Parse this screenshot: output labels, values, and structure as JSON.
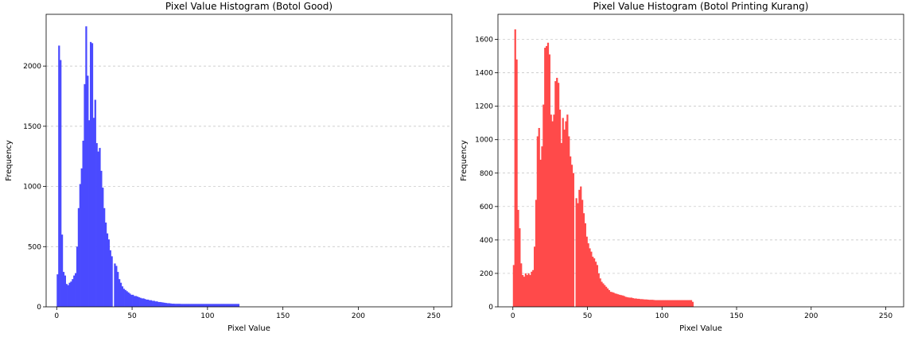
{
  "chart_data": [
    {
      "type": "bar",
      "title": "Pixel Value Histogram (Botol Good)",
      "xlabel": "Pixel Value",
      "ylabel": "Frequency",
      "color": "#4a4aff",
      "grid": "y-dashed",
      "xlim": [
        -7,
        262
      ],
      "ylim": [
        0,
        2430
      ],
      "xticks": [
        0,
        50,
        100,
        150,
        200,
        250
      ],
      "yticks": [
        0,
        500,
        1000,
        1500,
        2000
      ],
      "bin_width": 1,
      "x": [
        0,
        1,
        2,
        3,
        4,
        5,
        6,
        7,
        8,
        9,
        10,
        11,
        12,
        13,
        14,
        15,
        16,
        17,
        18,
        19,
        20,
        21,
        22,
        23,
        24,
        25,
        26,
        27,
        28,
        29,
        30,
        31,
        32,
        33,
        34,
        35,
        36,
        37,
        38,
        39,
        40,
        41,
        42,
        43,
        44,
        45,
        46,
        47,
        48,
        49,
        50,
        51,
        52,
        53,
        54,
        55,
        56,
        57,
        58,
        59,
        60,
        61,
        62,
        63,
        64,
        65,
        66,
        67,
        68,
        69,
        70,
        71,
        72,
        73,
        74,
        75,
        76,
        77,
        78,
        79,
        80,
        81,
        82,
        83,
        84,
        85,
        86,
        87,
        88,
        89,
        90,
        91,
        92,
        93,
        94,
        95,
        96,
        97,
        98,
        99,
        100,
        101,
        102,
        103,
        104,
        105,
        106,
        107,
        108,
        109,
        110,
        111,
        112,
        113,
        114,
        115,
        116,
        117,
        118,
        119,
        120
      ],
      "values": [
        270,
        2170,
        2050,
        600,
        290,
        260,
        190,
        180,
        200,
        210,
        230,
        260,
        280,
        500,
        820,
        1020,
        1150,
        1380,
        1850,
        2330,
        1920,
        1550,
        2200,
        2190,
        1570,
        1720,
        1360,
        1290,
        1320,
        1130,
        990,
        820,
        700,
        610,
        560,
        470,
        420,
        0,
        360,
        340,
        290,
        230,
        200,
        170,
        150,
        140,
        130,
        120,
        110,
        100,
        100,
        90,
        90,
        85,
        80,
        75,
        70,
        70,
        65,
        60,
        60,
        55,
        55,
        50,
        50,
        45,
        45,
        40,
        40,
        38,
        36,
        34,
        32,
        30,
        30,
        28,
        26,
        26,
        25,
        25,
        25,
        25,
        24,
        24,
        24,
        24,
        24,
        24,
        24,
        24,
        24,
        24,
        24,
        24,
        24,
        24,
        24,
        24,
        24,
        24,
        24,
        24,
        24,
        24,
        24,
        24,
        24,
        24,
        24,
        24,
        24,
        24,
        24,
        24,
        24,
        24,
        24,
        24,
        24,
        24,
        24
      ]
    },
    {
      "type": "bar",
      "title": "Pixel Value Histogram (Botol Printing Kurang)",
      "xlabel": "Pixel Value",
      "ylabel": "Frequency",
      "color": "#ff4a4a",
      "grid": "y-dashed",
      "xlim": [
        -10,
        262
      ],
      "ylim": [
        0,
        1750
      ],
      "xticks": [
        0,
        50,
        100,
        150,
        200,
        250
      ],
      "yticks": [
        0,
        200,
        400,
        600,
        800,
        1000,
        1200,
        1400,
        1600
      ],
      "bin_width": 1,
      "x": [
        0,
        1,
        2,
        3,
        4,
        5,
        6,
        7,
        8,
        9,
        10,
        11,
        12,
        13,
        14,
        15,
        16,
        17,
        18,
        19,
        20,
        21,
        22,
        23,
        24,
        25,
        26,
        27,
        28,
        29,
        30,
        31,
        32,
        33,
        34,
        35,
        36,
        37,
        38,
        39,
        40,
        41,
        42,
        43,
        44,
        45,
        46,
        47,
        48,
        49,
        50,
        51,
        52,
        53,
        54,
        55,
        56,
        57,
        58,
        59,
        60,
        61,
        62,
        63,
        64,
        65,
        66,
        67,
        68,
        69,
        70,
        71,
        72,
        73,
        74,
        75,
        76,
        77,
        78,
        79,
        80,
        81,
        82,
        83,
        84,
        85,
        86,
        87,
        88,
        89,
        90,
        91,
        92,
        93,
        94,
        95,
        96,
        97,
        98,
        99,
        100,
        101,
        102,
        103,
        104,
        105,
        106,
        107,
        108,
        109,
        110,
        111,
        112,
        113,
        114,
        115,
        116,
        117,
        118,
        119,
        120
      ],
      "values": [
        250,
        1660,
        1480,
        580,
        470,
        260,
        190,
        180,
        200,
        190,
        200,
        190,
        210,
        220,
        360,
        640,
        1020,
        1070,
        880,
        960,
        1210,
        1550,
        1560,
        1580,
        1510,
        1150,
        1110,
        1150,
        1350,
        1370,
        1340,
        1180,
        980,
        1130,
        1060,
        1110,
        1150,
        1020,
        900,
        850,
        800,
        0,
        650,
        620,
        700,
        720,
        640,
        560,
        500,
        420,
        380,
        350,
        330,
        300,
        290,
        270,
        250,
        200,
        170,
        150,
        140,
        130,
        120,
        110,
        100,
        90,
        88,
        85,
        80,
        78,
        75,
        72,
        70,
        68,
        65,
        60,
        58,
        56,
        55,
        55,
        52,
        50,
        50,
        48,
        48,
        46,
        46,
        45,
        44,
        44,
        43,
        42,
        42,
        42,
        41,
        40,
        40,
        40,
        40,
        40,
        40,
        40,
        40,
        40,
        40,
        40,
        40,
        40,
        40,
        40,
        40,
        40,
        40,
        40,
        40,
        40,
        40,
        40,
        40,
        40,
        30
      ]
    }
  ]
}
